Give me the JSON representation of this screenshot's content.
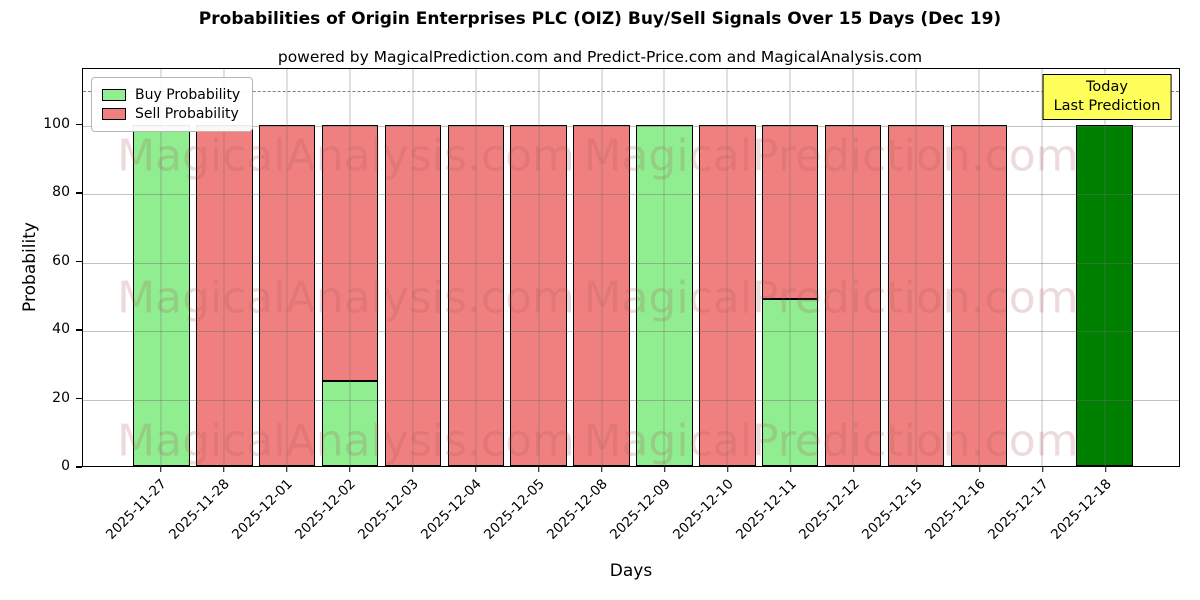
{
  "header": {
    "title": "Probabilities of Origin Enterprises PLC (OIZ) Buy/Sell Signals Over 15 Days (Dec 19)",
    "subtitle": "powered by MagicalPrediction.com and Predict-Price.com and MagicalAnalysis.com"
  },
  "legend": {
    "items": [
      {
        "label": "Buy Probability",
        "color": "#90ee90"
      },
      {
        "label": "Sell Probability",
        "color": "#f08080"
      }
    ]
  },
  "annotation_box": {
    "lines": [
      "Today",
      "Last Prediction"
    ],
    "bg_color": "#ffff5c",
    "border_color": "#000000"
  },
  "watermarks": {
    "left_text": "MagicalAnalysis.com",
    "right_text": "MagicalPrediction.com"
  },
  "chart_data": {
    "type": "bar",
    "stacked": true,
    "title": "Probabilities of Origin Enterprises PLC (OIZ) Buy/Sell Signals Over 15 Days (Dec 19)",
    "xlabel": "Days",
    "ylabel": "Probability",
    "ylim": [
      0,
      116.5
    ],
    "yticks": [
      0,
      20,
      40,
      60,
      80,
      100
    ],
    "grid": true,
    "legend_position": "upper left",
    "dashed_line_y": 110,
    "bar_edge_color": "#000000",
    "categories": [
      "2025-11-27",
      "2025-11-28",
      "2025-12-01",
      "2025-12-02",
      "2025-12-03",
      "2025-12-04",
      "2025-12-05",
      "2025-12-08",
      "2025-12-09",
      "2025-12-10",
      "2025-12-11",
      "2025-12-12",
      "2025-12-15",
      "2025-12-16",
      "2025-12-17",
      "2025-12-18"
    ],
    "series": [
      {
        "name": "Buy Probability",
        "color": "#90ee90",
        "values": [
          100,
          0,
          0,
          25,
          0,
          0,
          0,
          0,
          100,
          0,
          49,
          0,
          0,
          0,
          0,
          0
        ]
      },
      {
        "name": "Sell Probability",
        "color": "#f08080",
        "values": [
          0,
          100,
          100,
          75,
          100,
          100,
          100,
          100,
          0,
          100,
          51,
          100,
          100,
          100,
          0,
          0
        ]
      },
      {
        "name": "Today Last Prediction",
        "color": "#008000",
        "values": [
          0,
          0,
          0,
          0,
          0,
          0,
          0,
          0,
          0,
          0,
          0,
          0,
          0,
          0,
          0,
          100
        ]
      }
    ]
  }
}
